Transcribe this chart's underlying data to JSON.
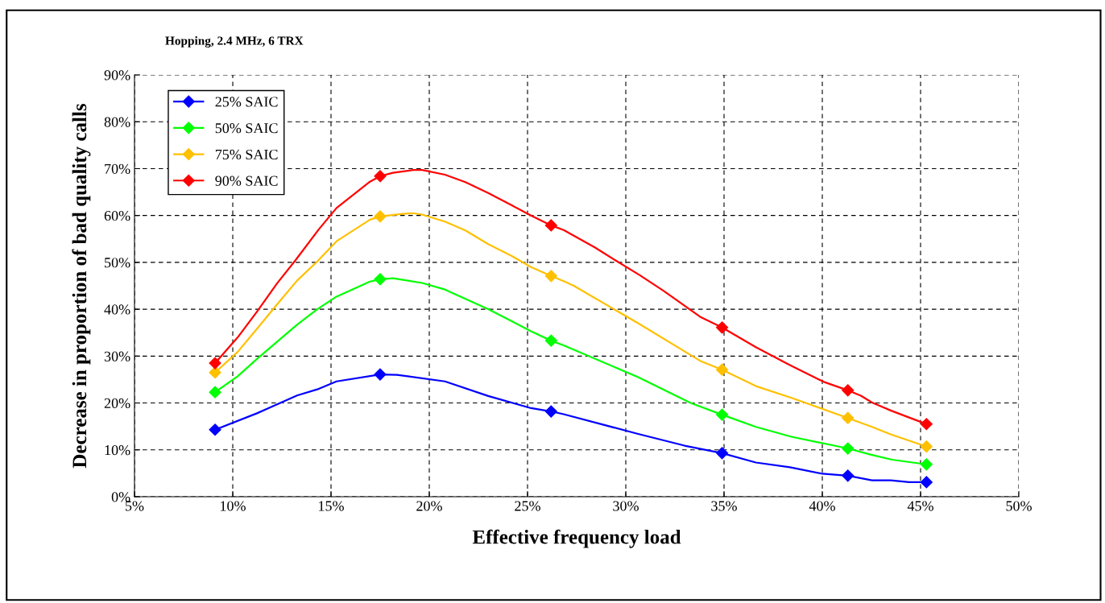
{
  "chart_data": {
    "type": "line",
    "title": "Hopping, 2.4 MHz, 6 TRX",
    "xlabel": "Effective frequency load",
    "ylabel": "Decrease in proportion of bad quality calls",
    "x": [
      9.1,
      17.5,
      26.2,
      34.9,
      41.3,
      45.3
    ],
    "series": [
      {
        "marker": "none",
        "color": "#0000ff",
        "x": [
          9.1,
          11.23,
          13.27,
          14.3,
          15.28,
          17.5,
          18.36,
          20.8,
          23.0,
          25.18,
          26.2,
          26.84,
          30.63,
          32.99,
          34.9,
          36.62,
          38.35,
          40.0,
          41.3,
          42.53,
          43.48,
          44.42,
          45.3
        ],
        "values": [
          14.3,
          17.8,
          21.6,
          22.9,
          24.6,
          26.1,
          26.0,
          24.6,
          21.5,
          18.9,
          18.2,
          17.6,
          13.4,
          10.9,
          9.3,
          7.3,
          6.3,
          4.9,
          4.5,
          3.5,
          3.5,
          3.1,
          3.1
        ]
      },
      {
        "marker": "none",
        "color": "#00ff00",
        "x": [
          9.1,
          10.25,
          11.23,
          13.27,
          14.3,
          15.28,
          16.98,
          17.5,
          18.15,
          19.64,
          20.8,
          21.84,
          23.0,
          24.18,
          25.18,
          26.2,
          26.84,
          30.63,
          33.3,
          34.9,
          36.62,
          38.43,
          41.3,
          42.45,
          43.55,
          45.3
        ],
        "values": [
          22.3,
          25.7,
          29.4,
          36.7,
          40.0,
          42.7,
          45.9,
          46.4,
          46.6,
          45.6,
          44.2,
          42.2,
          40.0,
          37.5,
          35.3,
          33.3,
          32.3,
          25.5,
          20.0,
          17.5,
          14.9,
          12.8,
          10.3,
          9.0,
          7.9,
          6.9
        ]
      },
      {
        "marker": "none",
        "color": "#ffc000",
        "x": [
          9.1,
          10.25,
          11.23,
          12.25,
          13.27,
          14.3,
          15.28,
          16.98,
          17.5,
          18.55,
          19.13,
          19.64,
          20.8,
          21.84,
          23.0,
          24.18,
          25.18,
          26.2,
          26.84,
          27.32,
          30.63,
          33.78,
          34.9,
          36.62,
          38.5,
          41.3,
          42.53,
          43.48,
          45.3
        ],
        "values": [
          26.5,
          30.9,
          35.8,
          41.0,
          46.1,
          50.2,
          54.5,
          59.1,
          59.8,
          60.3,
          60.5,
          60.2,
          58.7,
          56.8,
          53.9,
          51.4,
          49.0,
          47.1,
          46.0,
          45.1,
          37.0,
          29.0,
          27.1,
          23.6,
          21.0,
          16.8,
          14.9,
          13.3,
          10.7
        ]
      },
      {
        "marker": "none",
        "color": "#ff0000",
        "x": [
          9.1,
          10.25,
          11.27,
          12.25,
          13.2,
          14.37,
          15.28,
          16.98,
          17.5,
          18.15,
          19.2,
          19.64,
          20.8,
          21.84,
          23.0,
          24.18,
          25.18,
          26.2,
          26.84,
          28.42,
          29.45,
          30.7,
          31.9,
          33.78,
          34.9,
          36.62,
          38.35,
          40.08,
          41.3,
          41.98,
          42.53,
          43.48,
          44.42,
          45.3
        ],
        "values": [
          28.5,
          34.0,
          39.7,
          45.5,
          50.5,
          57.0,
          61.6,
          67.2,
          68.4,
          69.1,
          69.7,
          69.7,
          68.7,
          67.1,
          64.8,
          62.2,
          60.0,
          57.9,
          56.9,
          53.2,
          50.5,
          47.3,
          44.0,
          38.4,
          36.1,
          31.9,
          28.1,
          24.5,
          22.7,
          21.5,
          20.1,
          18.4,
          16.9,
          15.5
        ]
      },
      {
        "type": "scatter",
        "name": "25% SAIC",
        "color": "#0000ff",
        "values": [
          14.3,
          26.1,
          18.2,
          9.3,
          4.5,
          3.1
        ]
      },
      {
        "type": "scatter",
        "name": "50% SAIC",
        "color": "#00ff00",
        "values": [
          22.3,
          46.4,
          33.3,
          17.5,
          10.3,
          6.9
        ]
      },
      {
        "type": "scatter",
        "name": "75% SAIC",
        "color": "#ffc000",
        "values": [
          26.5,
          59.8,
          47.1,
          27.1,
          16.8,
          10.7
        ]
      },
      {
        "type": "scatter",
        "name": "90% SAIC",
        "color": "#ff0000",
        "values": [
          28.5,
          68.4,
          57.9,
          36.1,
          22.7,
          15.5
        ]
      }
    ],
    "xlim": [
      5,
      50
    ],
    "xticks": [
      {
        "value": 5,
        "label": "5%"
      },
      {
        "value": 10,
        "label": "10%"
      },
      {
        "value": 15,
        "label": "15%"
      },
      {
        "value": 20,
        "label": "20%"
      },
      {
        "value": 25,
        "label": "25%"
      },
      {
        "value": 30,
        "label": "30%"
      },
      {
        "value": 35,
        "label": "35%"
      },
      {
        "value": 40,
        "label": "40%"
      },
      {
        "value": 45,
        "label": "45%"
      },
      {
        "value": 50,
        "label": "50%"
      }
    ],
    "ylim": [
      0,
      90
    ],
    "yticks": [
      {
        "value": 0,
        "label": "0%"
      },
      {
        "value": 10,
        "label": "10%"
      },
      {
        "value": 20,
        "label": "20%"
      },
      {
        "value": 30,
        "label": "30%"
      },
      {
        "value": 40,
        "label": "40%"
      },
      {
        "value": 50,
        "label": "50%"
      },
      {
        "value": 60,
        "label": "60%"
      },
      {
        "value": 70,
        "label": "70%"
      },
      {
        "value": 80,
        "label": "80%"
      },
      {
        "value": 90,
        "label": "90%"
      }
    ],
    "grid": true,
    "legend": "top left",
    "marker": "diamond",
    "line_style": "solid"
  }
}
